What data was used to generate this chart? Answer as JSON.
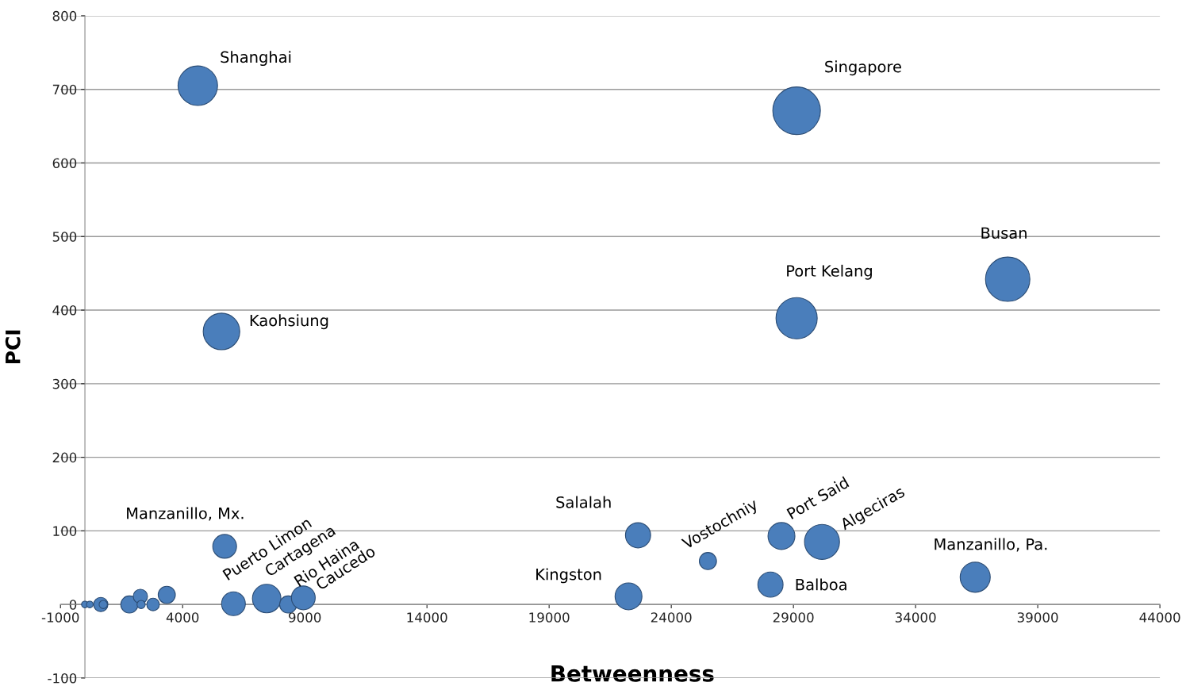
{
  "chart_data": {
    "type": "bubble",
    "xlabel": "Betweenness",
    "ylabel": "PCI",
    "xlim": [
      -1000,
      44000
    ],
    "xticks": [
      -1000,
      4000,
      9000,
      14000,
      19000,
      24000,
      29000,
      34000,
      39000,
      44000
    ],
    "ylim": [
      -100,
      800
    ],
    "yticks": [
      -100,
      0,
      100,
      200,
      300,
      400,
      500,
      600,
      700,
      800
    ],
    "grid": "y",
    "series": [
      {
        "color": "#4a7ebb",
        "x": [
          4620,
          29130,
          37770,
          29130,
          5590,
          5720,
          22640,
          25500,
          28510,
          30170,
          36440,
          22250,
          28060,
          6080,
          7440,
          8320,
          8940,
          0,
          200,
          650,
          750,
          1820,
          2270,
          2300,
          2790,
          3350
        ],
        "values": [
          705,
          671,
          442,
          389,
          371,
          79,
          94,
          59,
          93,
          85,
          37,
          11,
          27,
          1,
          8,
          0,
          9,
          0,
          0,
          0,
          0,
          0,
          11,
          0,
          0,
          13
        ],
        "sizes": [
          0.69,
          1,
          0.87,
          0.75,
          0.59,
          0.25,
          0.28,
          0.13,
          0.32,
          0.54,
          0.4,
          0.32,
          0.28,
          0.25,
          0.36,
          0.13,
          0.25,
          0.02,
          0.02,
          0.09,
          0.03,
          0.13,
          0.09,
          0.03,
          0.07,
          0.13
        ]
      }
    ],
    "annotations": [
      {
        "text": "Shanghai",
        "x": 4620,
        "y": 705
      },
      {
        "text": "Singapore",
        "x": 29130,
        "y": 671
      },
      {
        "text": "Busan",
        "x": 37770,
        "y": 442
      },
      {
        "text": "Port Kelang",
        "x": 29130,
        "y": 389
      },
      {
        "text": "Kaohsiung",
        "x": 5590,
        "y": 371
      },
      {
        "text": "Manzanillo, Mx.",
        "x": 5720,
        "y": 79
      },
      {
        "text": "Salalah",
        "x": 22640,
        "y": 94
      },
      {
        "text": "Vostochniy",
        "x": 25500,
        "y": 59
      },
      {
        "text": "Port Said",
        "x": 28510,
        "y": 93
      },
      {
        "text": "Algeciras",
        "x": 30170,
        "y": 85
      },
      {
        "text": "Manzanillo, Pa.",
        "x": 36440,
        "y": 37
      },
      {
        "text": "Kingston",
        "x": 22250,
        "y": 11
      },
      {
        "text": "Balboa",
        "x": 28060,
        "y": 27
      },
      {
        "text": "Puerto Limon",
        "x": 6080,
        "y": 1
      },
      {
        "text": "Cartagena",
        "x": 7440,
        "y": 8
      },
      {
        "text": "Rio Haina",
        "x": 8320,
        "y": 0
      },
      {
        "text": "Caucedo",
        "x": 8940,
        "y": 9
      }
    ]
  }
}
